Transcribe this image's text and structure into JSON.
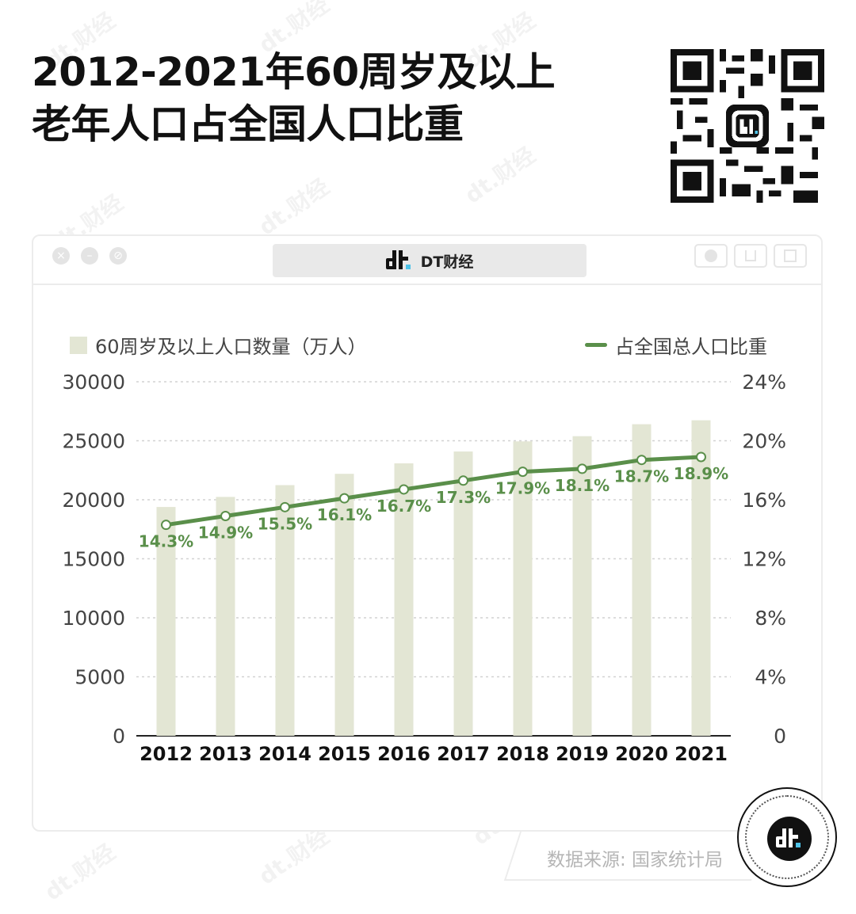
{
  "title_lines": [
    "2012-2021年60周岁及以上",
    "老年人口占全国人口比重"
  ],
  "window": {
    "address_text": "DT财经"
  },
  "source_text": "数据来源: 国家统计局",
  "watermark_text": "dt.财经",
  "colors": {
    "bar": "#e3e6d4",
    "line": "#5a8f4a",
    "grid": "#d2d2d2",
    "point_fill": "#ffffff"
  },
  "chart_data": {
    "type": "bar",
    "title": "2012-2021年60周岁及以上老年人口占全国人口比重",
    "categories": [
      "2012",
      "2013",
      "2014",
      "2015",
      "2016",
      "2017",
      "2018",
      "2019",
      "2020",
      "2021"
    ],
    "series": [
      {
        "name": "60周岁及以上人口数量（万人）",
        "type": "bar",
        "axis": "left",
        "values": [
          19390,
          20243,
          21242,
          22200,
          23086,
          24090,
          24949,
          25388,
          26402,
          26736
        ]
      },
      {
        "name": "占全国总人口比重",
        "type": "line",
        "axis": "right",
        "values": [
          14.3,
          14.9,
          15.5,
          16.1,
          16.7,
          17.3,
          17.9,
          18.1,
          18.7,
          18.9
        ],
        "labels": [
          "14.3%",
          "14.9%",
          "15.5%",
          "16.1%",
          "16.7%",
          "17.3%",
          "17.9%",
          "18.1%",
          "18.7%",
          "18.9%"
        ]
      }
    ],
    "y_left": {
      "ticks": [
        "30000",
        "25000",
        "20000",
        "15000",
        "10000",
        "5000",
        "0"
      ],
      "ylim": [
        0,
        30000
      ]
    },
    "y_right": {
      "ticks": [
        "24%",
        "20%",
        "16%",
        "12%",
        "8%",
        "4%",
        "0"
      ],
      "ylim": [
        0,
        24
      ]
    },
    "grid": "dashed horizontal",
    "legend": "top"
  }
}
